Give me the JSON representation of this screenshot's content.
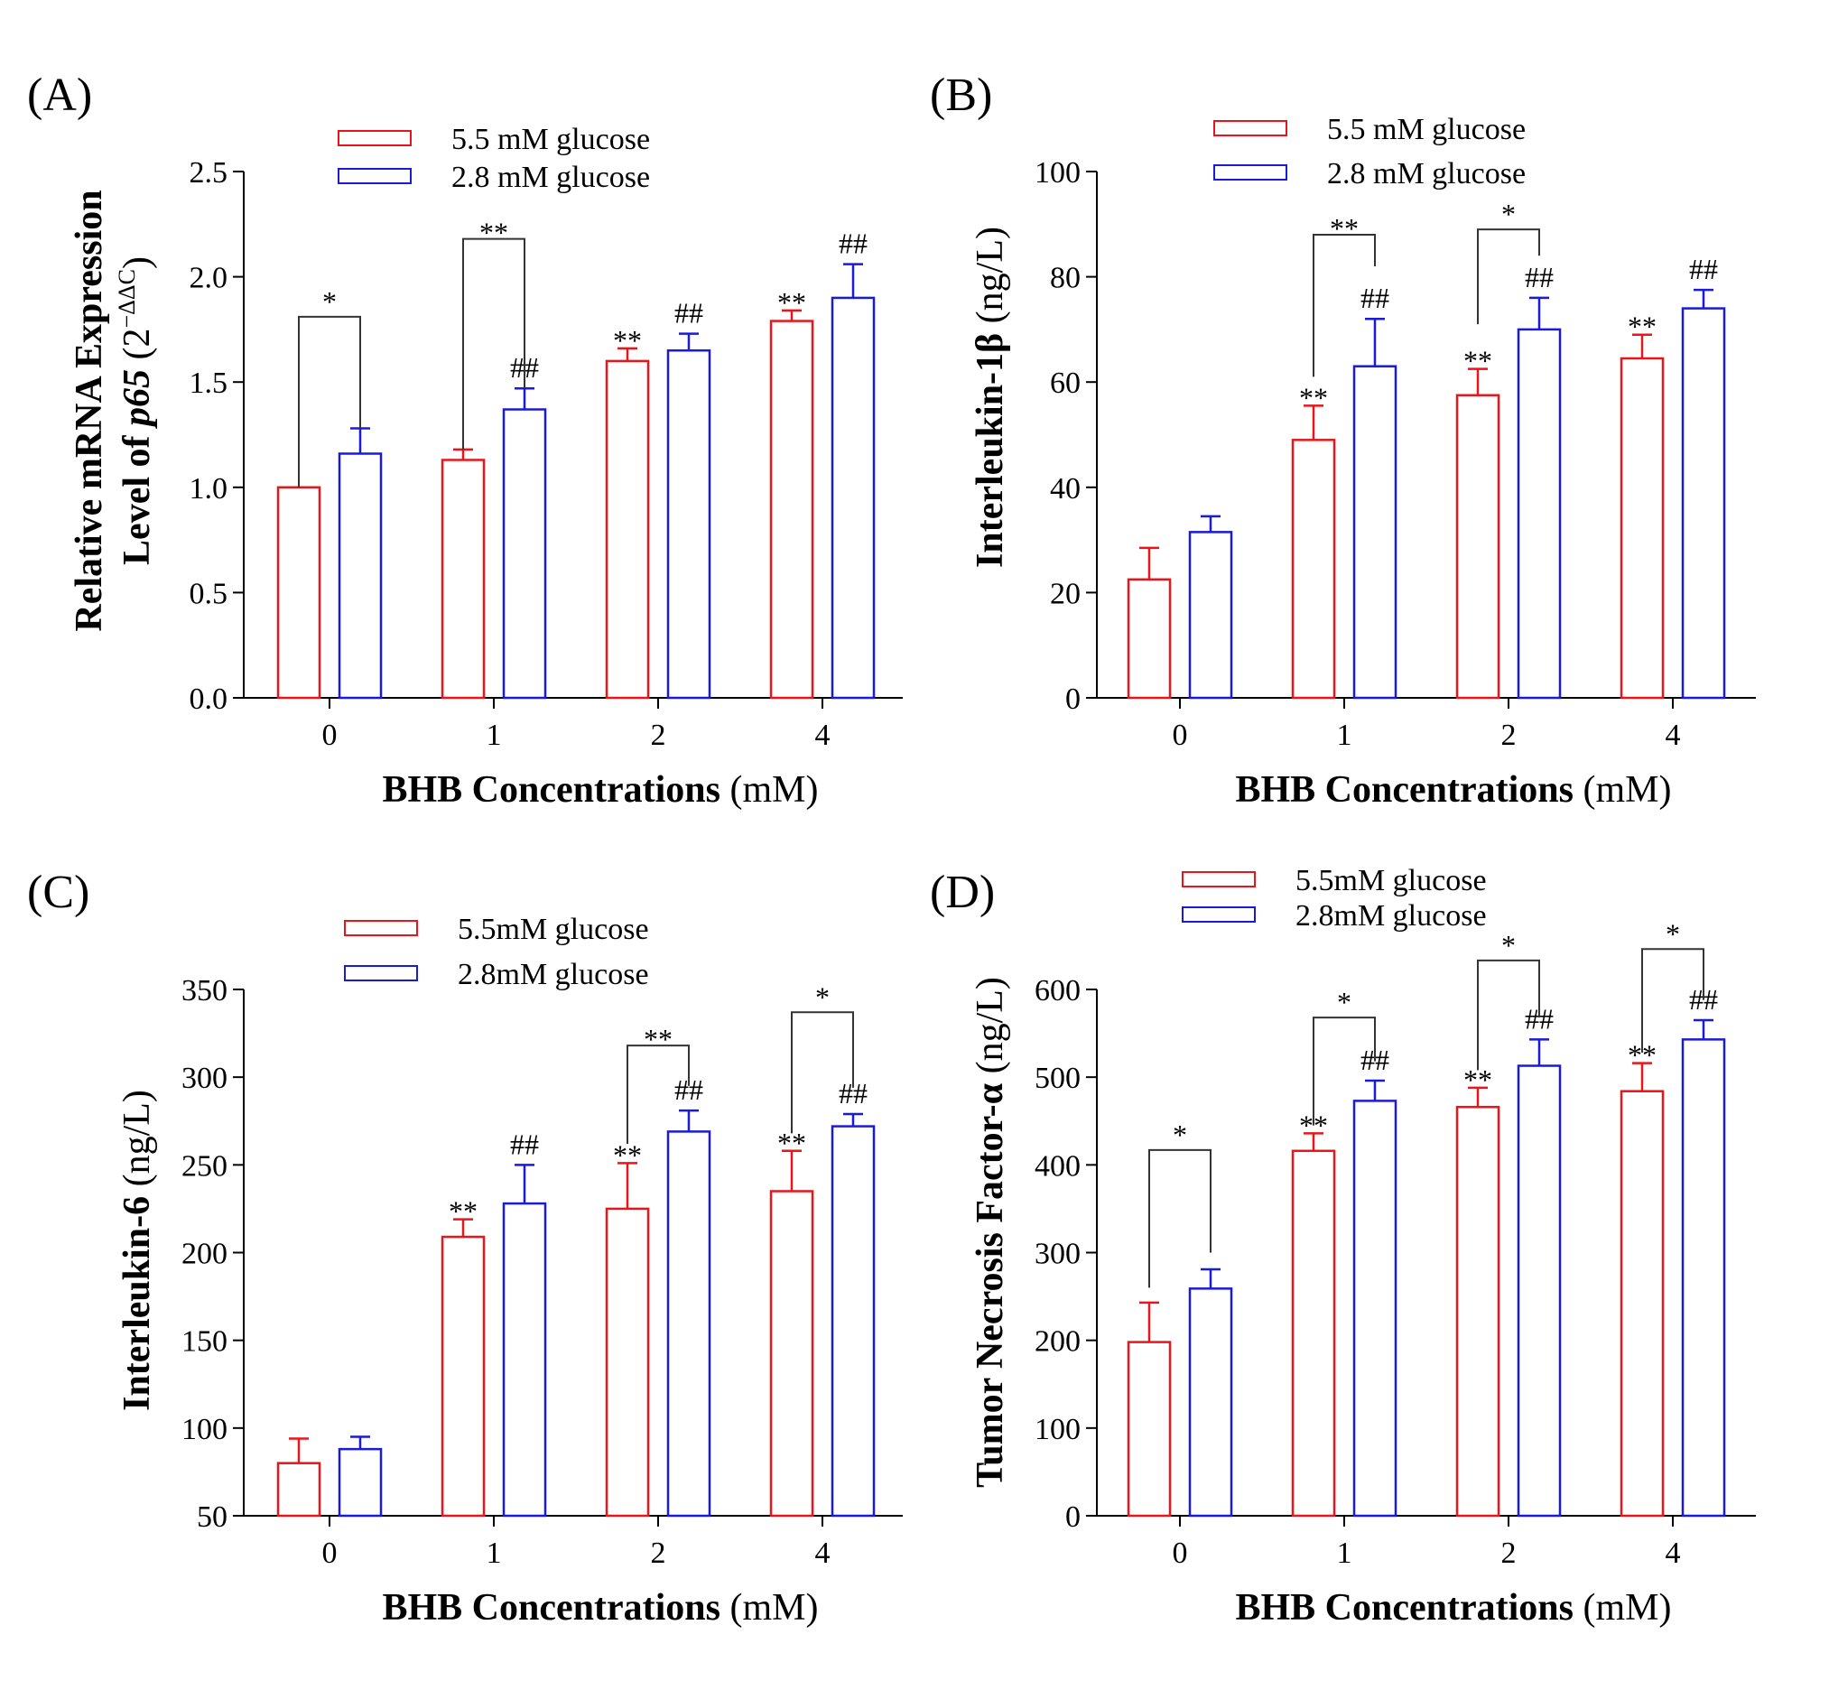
{
  "figure": {
    "background": "#ffffff"
  },
  "series_colors": {
    "red": "#e8161b",
    "blue": "#1a1adb"
  },
  "chart_data": [
    {
      "type": "bar",
      "panel_label": "(A)",
      "ylabel_parts": [
        "Relative mRNA Expression",
        "Level of ",
        "p65",
        " (2",
        "−ΔΔC",
        ")"
      ],
      "xlabel_bold": "BHB Concentrations",
      "xlabel_unit": " (mM)",
      "categories": [
        "0",
        "1",
        "2",
        "4"
      ],
      "ylim": [
        0,
        2.5
      ],
      "yticks": [
        0,
        0.5,
        1,
        1.5,
        2,
        2.5
      ],
      "ytick_labels": [
        "0.0",
        "0.5",
        "1.0",
        "1.5",
        "2.0",
        "2.5"
      ],
      "series": [
        {
          "name": "5.5 mM glucose",
          "color": "#e8161b",
          "values": [
            1.0,
            1.13,
            1.6,
            1.79
          ],
          "errors": [
            0,
            0.05,
            0.06,
            0.05
          ],
          "marks": [
            "",
            "",
            "**",
            "**"
          ]
        },
        {
          "name": "2.8 mM glucose",
          "color": "#1a1adb",
          "values": [
            1.16,
            1.37,
            1.65,
            1.9
          ],
          "errors": [
            0.12,
            0.1,
            0.08,
            0.16
          ],
          "marks": [
            "",
            "##",
            "##",
            "##"
          ]
        }
      ],
      "brackets": [
        {
          "category": 0,
          "level": 1.81,
          "label": "*",
          "left_from": 1.0,
          "right_from": 1.28
        },
        {
          "category": 1,
          "level": 2.18,
          "label": "**",
          "left_from": 1.18,
          "right_from": 1.47
        }
      ]
    },
    {
      "type": "bar",
      "panel_label": "(B)",
      "ylabel_parts": [
        "Interleukin-1β",
        " (ng/L)"
      ],
      "xlabel_bold": "BHB Concentrations",
      "xlabel_unit": " (mM)",
      "categories": [
        "0",
        "1",
        "2",
        "4"
      ],
      "ylim": [
        0,
        100
      ],
      "yticks": [
        0,
        20,
        40,
        60,
        80,
        100
      ],
      "ytick_labels": [
        "0",
        "20",
        "40",
        "60",
        "80",
        "100"
      ],
      "series": [
        {
          "name": "5.5 mM glucose",
          "color": "#e8161b",
          "values": [
            22.5,
            49,
            57.5,
            64.5
          ],
          "errors": [
            6,
            6.5,
            5,
            4.5
          ],
          "marks": [
            "",
            "**",
            "**",
            "**"
          ]
        },
        {
          "name": "2.8 mM glucose",
          "color": "#1a1adb",
          "values": [
            31.5,
            63,
            70,
            74
          ],
          "errors": [
            3,
            9,
            6,
            3.5
          ],
          "marks": [
            "",
            "##",
            "##",
            "##"
          ]
        }
      ],
      "brackets": [
        {
          "category": 1,
          "level": 88,
          "label": "**",
          "left_from": 61,
          "right_from": 82
        },
        {
          "category": 2,
          "level": 89,
          "label": "*",
          "left_from": 71,
          "right_from": 84
        }
      ]
    },
    {
      "type": "bar",
      "panel_label": "(C)",
      "ylabel_parts": [
        "Interleukin-6",
        " (ng/L)"
      ],
      "xlabel_bold": "BHB Concentrations",
      "xlabel_unit": " (mM)",
      "categories": [
        "0",
        "1",
        "2",
        "4"
      ],
      "ylim": [
        50,
        350
      ],
      "yticks": [
        50,
        100,
        150,
        200,
        250,
        300,
        350
      ],
      "ytick_labels": [
        "50",
        "100",
        "150",
        "200",
        "250",
        "300",
        "350"
      ],
      "series": [
        {
          "name": "5.5mM glucose",
          "color": "#e8161b",
          "values": [
            80,
            209,
            225,
            235
          ],
          "errors": [
            14,
            10,
            26,
            23
          ],
          "marks": [
            "",
            "**",
            "**",
            "**"
          ]
        },
        {
          "name": "2.8mM glucose",
          "color": "#1a1adb",
          "values": [
            88,
            228,
            269,
            272
          ],
          "errors": [
            7,
            22,
            12,
            7
          ],
          "marks": [
            "",
            "##",
            "##",
            "##"
          ]
        }
      ],
      "brackets": [
        {
          "category": 2,
          "level": 318,
          "label": "**",
          "left_from": 262,
          "right_from": 295
        },
        {
          "category": 3,
          "level": 337,
          "label": "*",
          "left_from": 268,
          "right_from": 294
        }
      ]
    },
    {
      "type": "bar",
      "panel_label": "(D)",
      "ylabel_parts": [
        "Tumor Necrosis Factor-α",
        " (ng/L)"
      ],
      "xlabel_bold": "BHB Concentrations",
      "xlabel_unit": " (mM)",
      "categories": [
        "0",
        "1",
        "2",
        "4"
      ],
      "ylim": [
        0,
        600
      ],
      "yticks": [
        0,
        100,
        200,
        300,
        400,
        500,
        600
      ],
      "ytick_labels": [
        "0",
        "100",
        "200",
        "300",
        "400",
        "500",
        "600"
      ],
      "series": [
        {
          "name": "5.5mM glucose",
          "color": "#e8161b",
          "values": [
            198,
            416,
            466,
            484
          ],
          "errors": [
            45,
            20,
            22,
            32
          ],
          "marks": [
            "",
            "**",
            "**",
            "**"
          ]
        },
        {
          "name": "2.8mM glucose",
          "color": "#1a1adb",
          "values": [
            259,
            473,
            513,
            543
          ],
          "errors": [
            22,
            23,
            30,
            22
          ],
          "marks": [
            "",
            "##",
            "##",
            "##"
          ]
        }
      ],
      "brackets": [
        {
          "category": 0,
          "level": 417,
          "label": "*",
          "left_from": 260,
          "right_from": 300
        },
        {
          "category": 1,
          "level": 568,
          "label": "*",
          "left_from": 445,
          "right_from": 518
        },
        {
          "category": 2,
          "level": 633,
          "label": "*",
          "left_from": 508,
          "right_from": 568
        },
        {
          "category": 3,
          "level": 646,
          "label": "*",
          "left_from": 528,
          "right_from": 588
        }
      ]
    }
  ]
}
